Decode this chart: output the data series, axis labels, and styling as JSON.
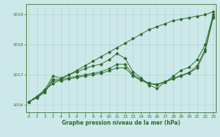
{
  "xlabel": "Graphe pression niveau de la mer (hPa)",
  "background_color": "#cce8e8",
  "grid_color": "#aacfcf",
  "line_color": "#2d6a2d",
  "x_ticks": [
    0,
    1,
    2,
    3,
    4,
    5,
    6,
    7,
    8,
    9,
    10,
    11,
    12,
    13,
    14,
    15,
    16,
    17,
    18,
    19,
    20,
    21,
    22,
    23
  ],
  "ylim": [
    1015.75,
    1019.35
  ],
  "xlim": [
    -0.3,
    23.3
  ],
  "yticks": [
    1016,
    1017,
    1018,
    1019
  ],
  "line1": [
    1016.1,
    1016.28,
    1016.5,
    1016.7,
    1016.85,
    1017.0,
    1017.15,
    1017.3,
    1017.45,
    1017.6,
    1017.75,
    1017.9,
    1018.05,
    1018.2,
    1018.35,
    1018.5,
    1018.6,
    1018.7,
    1018.8,
    1018.85,
    1018.9,
    1018.95,
    1019.0,
    1019.1
  ],
  "line2": [
    1016.1,
    1016.28,
    1016.5,
    1016.95,
    1016.9,
    1017.0,
    1017.1,
    1017.2,
    1017.3,
    1017.35,
    1017.5,
    1017.7,
    1017.55,
    1017.1,
    1016.9,
    1016.65,
    1016.55,
    1016.75,
    1016.95,
    1017.15,
    1017.25,
    1017.5,
    1018.0,
    1019.0
  ],
  "line3": [
    1016.1,
    1016.25,
    1016.45,
    1016.85,
    1016.85,
    1016.9,
    1016.95,
    1017.0,
    1017.05,
    1017.1,
    1017.2,
    1017.35,
    1017.35,
    1017.0,
    1016.85,
    1016.72,
    1016.68,
    1016.78,
    1016.88,
    1016.98,
    1017.08,
    1017.3,
    1017.85,
    1018.95
  ],
  "line4": [
    1016.1,
    1016.23,
    1016.42,
    1016.8,
    1016.8,
    1016.86,
    1016.91,
    1016.96,
    1017.0,
    1017.05,
    1017.13,
    1017.23,
    1017.23,
    1016.96,
    1016.81,
    1016.7,
    1016.66,
    1016.76,
    1016.86,
    1016.96,
    1017.06,
    1017.23,
    1017.78,
    1018.9
  ]
}
